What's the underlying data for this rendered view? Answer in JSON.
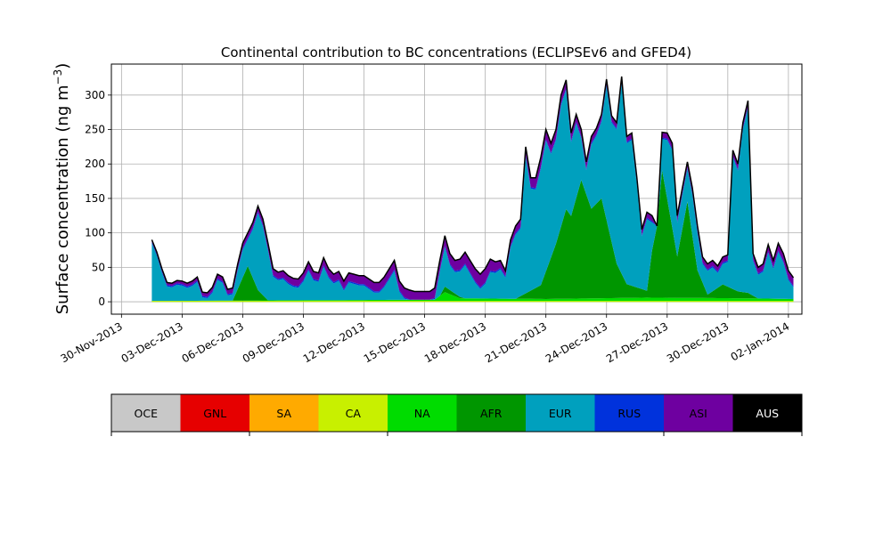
{
  "chart_data": {
    "type": "area",
    "stacked": true,
    "title": "Continental contribution to BC concentrations (ECLIPSEv6 and GFED4)",
    "xlabel": "",
    "ylabel_main": "Surface concentration (ng m",
    "ylabel_sup": "−3",
    "ylabel_end": ")",
    "xlim": [
      "2013-11-29T12:00",
      "2014-01-02T16:00"
    ],
    "ylim": [
      -18,
      345
    ],
    "grid": true,
    "legend_placement": "below",
    "x_ticks": [
      {
        "date": "2013-11-30",
        "label": "30-Nov-2013"
      },
      {
        "date": "2013-12-03",
        "label": "03-Dec-2013"
      },
      {
        "date": "2013-12-06",
        "label": "06-Dec-2013"
      },
      {
        "date": "2013-12-09",
        "label": "09-Dec-2013"
      },
      {
        "date": "2013-12-12",
        "label": "12-Dec-2013"
      },
      {
        "date": "2013-12-15",
        "label": "15-Dec-2013"
      },
      {
        "date": "2013-12-18",
        "label": "18-Dec-2013"
      },
      {
        "date": "2013-12-21",
        "label": "21-Dec-2013"
      },
      {
        "date": "2013-12-24",
        "label": "24-Dec-2013"
      },
      {
        "date": "2013-12-27",
        "label": "27-Dec-2013"
      },
      {
        "date": "2013-12-30",
        "label": "30-Dec-2013"
      },
      {
        "date": "2014-01-02",
        "label": "02-Jan-2014"
      }
    ],
    "y_ticks": [
      0,
      50,
      100,
      150,
      200,
      250,
      300
    ],
    "legend": [
      {
        "label": "OCE",
        "color": "#c8c8c8",
        "text_color": "#000000"
      },
      {
        "label": "GNL",
        "color": "#e60000",
        "text_color": "#000000"
      },
      {
        "label": "SA",
        "color": "#ffaa00",
        "text_color": "#000000"
      },
      {
        "label": "CA",
        "color": "#c8f000",
        "text_color": "#000000"
      },
      {
        "label": "NA",
        "color": "#00dc00",
        "text_color": "#000000"
      },
      {
        "label": "AFR",
        "color": "#009600",
        "text_color": "#000000"
      },
      {
        "label": "EUR",
        "color": "#00a0be",
        "text_color": "#000000"
      },
      {
        "label": "RUS",
        "color": "#0032dc",
        "text_color": "#000000"
      },
      {
        "label": "ASI",
        "color": "#6e00a0",
        "text_color": "#000000"
      },
      {
        "label": "AUS",
        "color": "#000000",
        "text_color": "#ffffff"
      }
    ],
    "total_outline": [
      [
        "2013-12-01T12:00",
        90
      ],
      [
        "2013-12-01T18:00",
        72
      ],
      [
        "2013-12-02T00:00",
        48
      ],
      [
        "2013-12-02T06:00",
        28
      ],
      [
        "2013-12-02T12:00",
        27
      ],
      [
        "2013-12-02T18:00",
        31
      ],
      [
        "2013-12-03T00:00",
        30
      ],
      [
        "2013-12-03T06:00",
        27
      ],
      [
        "2013-12-03T12:00",
        30
      ],
      [
        "2013-12-03T18:00",
        36
      ],
      [
        "2013-12-04T00:00",
        14
      ],
      [
        "2013-12-04T06:00",
        13
      ],
      [
        "2013-12-04T12:00",
        21
      ],
      [
        "2013-12-04T18:00",
        40
      ],
      [
        "2013-12-05T00:00",
        36
      ],
      [
        "2013-12-05T06:00",
        18
      ],
      [
        "2013-12-05T12:00",
        20
      ],
      [
        "2013-12-05T18:00",
        55
      ],
      [
        "2013-12-06T00:00",
        85
      ],
      [
        "2013-12-06T06:00",
        100
      ],
      [
        "2013-12-06T12:00",
        115
      ],
      [
        "2013-12-06T18:00",
        139
      ],
      [
        "2013-12-07T00:00",
        120
      ],
      [
        "2013-12-07T06:00",
        85
      ],
      [
        "2013-12-07T12:00",
        48
      ],
      [
        "2013-12-07T18:00",
        43
      ],
      [
        "2013-12-08T00:00",
        45
      ],
      [
        "2013-12-08T06:00",
        38
      ],
      [
        "2013-12-08T12:00",
        34
      ],
      [
        "2013-12-08T18:00",
        33
      ],
      [
        "2013-12-09T00:00",
        42
      ],
      [
        "2013-12-09T06:00",
        58
      ],
      [
        "2013-12-09T12:00",
        44
      ],
      [
        "2013-12-09T18:00",
        42
      ],
      [
        "2013-12-10T00:00",
        64
      ],
      [
        "2013-12-10T06:00",
        48
      ],
      [
        "2013-12-10T12:00",
        40
      ],
      [
        "2013-12-10T18:00",
        44
      ],
      [
        "2013-12-11T00:00",
        30
      ],
      [
        "2013-12-11T06:00",
        42
      ],
      [
        "2013-12-11T12:00",
        40
      ],
      [
        "2013-12-11T18:00",
        38
      ],
      [
        "2013-12-12T00:00",
        38
      ],
      [
        "2013-12-12T06:00",
        33
      ],
      [
        "2013-12-12T12:00",
        28
      ],
      [
        "2013-12-12T18:00",
        28
      ],
      [
        "2013-12-13T00:00",
        36
      ],
      [
        "2013-12-13T06:00",
        48
      ],
      [
        "2013-12-13T12:00",
        60
      ],
      [
        "2013-12-13T18:00",
        30
      ],
      [
        "2013-12-14T00:00",
        20
      ],
      [
        "2013-12-14T06:00",
        17
      ],
      [
        "2013-12-14T12:00",
        15
      ],
      [
        "2013-12-14T18:00",
        15
      ],
      [
        "2013-12-15T00:00",
        15
      ],
      [
        "2013-12-15T06:00",
        15
      ],
      [
        "2013-12-15T12:00",
        20
      ],
      [
        "2013-12-15T18:00",
        60
      ],
      [
        "2013-12-16T00:00",
        96
      ],
      [
        "2013-12-16T06:00",
        70
      ],
      [
        "2013-12-16T12:00",
        60
      ],
      [
        "2013-12-16T18:00",
        62
      ],
      [
        "2013-12-17T00:00",
        72
      ],
      [
        "2013-12-17T06:00",
        60
      ],
      [
        "2013-12-17T12:00",
        48
      ],
      [
        "2013-12-17T18:00",
        40
      ],
      [
        "2013-12-18T00:00",
        48
      ],
      [
        "2013-12-18T06:00",
        62
      ],
      [
        "2013-12-18T12:00",
        58
      ],
      [
        "2013-12-18T18:00",
        60
      ],
      [
        "2013-12-19T00:00",
        45
      ],
      [
        "2013-12-19T06:00",
        90
      ],
      [
        "2013-12-19T12:00",
        110
      ],
      [
        "2013-12-19T18:00",
        120
      ],
      [
        "2013-12-20T00:00",
        225
      ],
      [
        "2013-12-20T06:00",
        180
      ],
      [
        "2013-12-20T12:00",
        180
      ],
      [
        "2013-12-20T18:00",
        210
      ],
      [
        "2013-12-21T00:00",
        250
      ],
      [
        "2013-12-21T06:00",
        230
      ],
      [
        "2013-12-21T12:00",
        250
      ],
      [
        "2013-12-21T18:00",
        300
      ],
      [
        "2013-12-22T00:00",
        322
      ],
      [
        "2013-12-22T06:00",
        245
      ],
      [
        "2013-12-22T12:00",
        272
      ],
      [
        "2013-12-22T18:00",
        250
      ],
      [
        "2013-12-23T00:00",
        203
      ],
      [
        "2013-12-23T06:00",
        240
      ],
      [
        "2013-12-23T12:00",
        252
      ],
      [
        "2013-12-23T18:00",
        272
      ],
      [
        "2013-12-24T00:00",
        323
      ],
      [
        "2013-12-24T06:00",
        270
      ],
      [
        "2013-12-24T12:00",
        260
      ],
      [
        "2013-12-24T18:00",
        327
      ],
      [
        "2013-12-25T00:00",
        240
      ],
      [
        "2013-12-25T06:00",
        245
      ],
      [
        "2013-12-25T12:00",
        180
      ],
      [
        "2013-12-25T18:00",
        105
      ],
      [
        "2013-12-26T00:00",
        130
      ],
      [
        "2013-12-26T06:00",
        125
      ],
      [
        "2013-12-26T12:00",
        110
      ],
      [
        "2013-12-26T18:00",
        246
      ],
      [
        "2013-12-27T00:00",
        245
      ],
      [
        "2013-12-27T06:00",
        230
      ],
      [
        "2013-12-27T12:00",
        125
      ],
      [
        "2013-12-27T18:00",
        165
      ],
      [
        "2013-12-28T00:00",
        203
      ],
      [
        "2013-12-28T06:00",
        165
      ],
      [
        "2013-12-28T12:00",
        110
      ],
      [
        "2013-12-28T18:00",
        65
      ],
      [
        "2013-12-29T00:00",
        55
      ],
      [
        "2013-12-29T06:00",
        60
      ],
      [
        "2013-12-29T12:00",
        52
      ],
      [
        "2013-12-29T18:00",
        65
      ],
      [
        "2013-12-30T00:00",
        68
      ],
      [
        "2013-12-30T06:00",
        220
      ],
      [
        "2013-12-30T12:00",
        200
      ],
      [
        "2013-12-30T18:00",
        260
      ],
      [
        "2013-12-31T00:00",
        292
      ],
      [
        "2013-12-31T06:00",
        70
      ],
      [
        "2013-12-31T12:00",
        50
      ],
      [
        "2013-12-31T18:00",
        55
      ],
      [
        "2014-01-01T00:00",
        83
      ],
      [
        "2014-01-01T06:00",
        60
      ],
      [
        "2014-01-01T12:00",
        85
      ],
      [
        "2014-01-01T18:00",
        70
      ],
      [
        "2014-01-02T00:00",
        45
      ],
      [
        "2014-01-02T06:00",
        35
      ]
    ],
    "series": [
      {
        "name": "NA",
        "color": "#00dc00",
        "values": [
          [
            "2013-12-01T12:00",
            1
          ],
          [
            "2013-12-07T00:00",
            2
          ],
          [
            "2013-12-15T12:00",
            3
          ],
          [
            "2013-12-16T00:00",
            14
          ],
          [
            "2013-12-16T18:00",
            5
          ],
          [
            "2013-12-21T00:00",
            4
          ],
          [
            "2013-12-26T00:00",
            6
          ],
          [
            "2013-12-31T00:00",
            5
          ],
          [
            "2014-01-02T06:00",
            4
          ]
        ]
      },
      {
        "name": "AFR",
        "color": "#009600",
        "values": [
          [
            "2013-12-01T12:00",
            0
          ],
          [
            "2013-12-05T12:00",
            0
          ],
          [
            "2013-12-06T06:00",
            50
          ],
          [
            "2013-12-06T18:00",
            15
          ],
          [
            "2013-12-07T06:00",
            0
          ],
          [
            "2013-12-15T18:00",
            0
          ],
          [
            "2013-12-16T00:00",
            8
          ],
          [
            "2013-12-17T00:00",
            0
          ],
          [
            "2013-12-19T12:00",
            0
          ],
          [
            "2013-12-20T18:00",
            20
          ],
          [
            "2013-12-21T12:00",
            80
          ],
          [
            "2013-12-22T00:00",
            130
          ],
          [
            "2013-12-22T06:00",
            120
          ],
          [
            "2013-12-22T18:00",
            172
          ],
          [
            "2013-12-23T06:00",
            130
          ],
          [
            "2013-12-23T18:00",
            145
          ],
          [
            "2013-12-24T12:00",
            50
          ],
          [
            "2013-12-25T00:00",
            20
          ],
          [
            "2013-12-26T00:00",
            10
          ],
          [
            "2013-12-26T18:00",
            185
          ],
          [
            "2013-12-27T12:00",
            60
          ],
          [
            "2013-12-28T00:00",
            140
          ],
          [
            "2013-12-28T12:00",
            40
          ],
          [
            "2013-12-29T00:00",
            5
          ],
          [
            "2013-12-29T18:00",
            20
          ],
          [
            "2013-12-30T12:00",
            10
          ],
          [
            "2013-12-31T00:00",
            8
          ],
          [
            "2013-12-31T12:00",
            0
          ],
          [
            "2014-01-02T06:00",
            0
          ]
        ]
      },
      {
        "name": "EUR",
        "color": "#00a0be",
        "values": "remainder"
      },
      {
        "name": "RUS",
        "color": "#0032dc",
        "values": "thin"
      },
      {
        "name": "ASI",
        "color": "#6e00a0",
        "values": [
          [
            "2013-12-01T12:00",
            3
          ],
          [
            "2013-12-06T12:00",
            8
          ],
          [
            "2013-12-08T00:00",
            10
          ],
          [
            "2013-12-16T12:00",
            15
          ],
          [
            "2013-12-18T00:00",
            20
          ],
          [
            "2013-12-19T00:00",
            8
          ],
          [
            "2013-12-20T12:00",
            15
          ],
          [
            "2013-12-24T00:00",
            8
          ],
          [
            "2013-12-28T00:00",
            8
          ],
          [
            "2013-12-31T00:00",
            8
          ],
          [
            "2014-01-02T06:00",
            12
          ]
        ]
      },
      {
        "name": "AUS",
        "color": "#000000",
        "values": "outline"
      }
    ]
  }
}
